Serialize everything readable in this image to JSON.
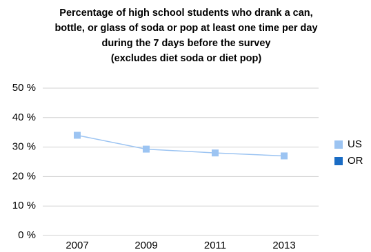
{
  "chart_data": {
    "type": "line",
    "title": [
      "Percentage of high school students who drank a can,",
      "bottle, or glass of soda or pop at least one time per day",
      "during the 7 days before the survey",
      "(excludes diet soda or diet pop)"
    ],
    "categories": [
      "2007",
      "2009",
      "2011",
      "2013"
    ],
    "series": [
      {
        "name": "US",
        "color": "#9cc4f2",
        "values": [
          34,
          29.3,
          28,
          27
        ]
      },
      {
        "name": "OR",
        "color": "#1a6cc4",
        "values": [
          null,
          null,
          null,
          null
        ]
      }
    ],
    "ylim": [
      0,
      50
    ],
    "yticks": [
      {
        "value": 0,
        "label": "0 %"
      },
      {
        "value": 10,
        "label": "10 %"
      },
      {
        "value": 20,
        "label": "20 %"
      },
      {
        "value": 30,
        "label": "30 %"
      },
      {
        "value": 40,
        "label": "40 %"
      },
      {
        "value": 50,
        "label": "50 %"
      }
    ],
    "grid": true,
    "legend": "right"
  }
}
